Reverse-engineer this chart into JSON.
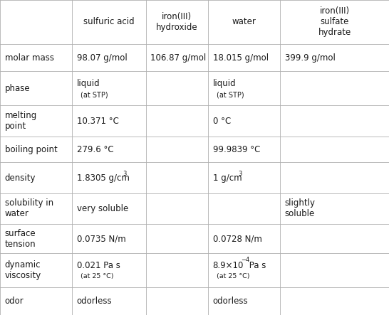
{
  "col_headers": [
    "",
    "sulfuric acid",
    "iron(III)\nhydroxide",
    "water",
    "iron(III)\nsulfate\nhydrate"
  ],
  "row_labels": [
    "molar mass",
    "phase",
    "melting\npoint",
    "boiling point",
    "density",
    "solubility in\nwater",
    "surface\ntension",
    "dynamic\nviscosity",
    "odor"
  ],
  "bg_color": "#ffffff",
  "text_color": "#1a1a1a",
  "line_color": "#b0b0b0",
  "font_size": 8.5,
  "header_font_size": 8.5,
  "figsize": [
    5.46,
    4.43
  ],
  "dpi": 100
}
